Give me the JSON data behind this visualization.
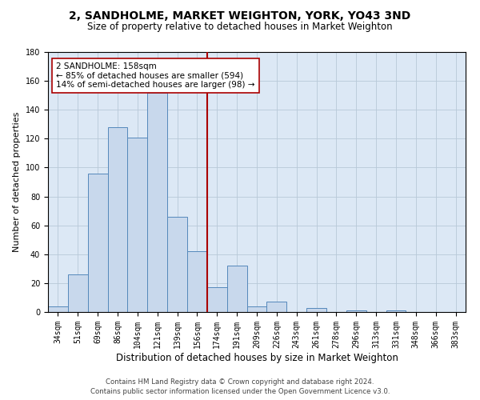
{
  "title": "2, SANDHOLME, MARKET WEIGHTON, YORK, YO43 3ND",
  "subtitle": "Size of property relative to detached houses in Market Weighton",
  "xlabel": "Distribution of detached houses by size in Market Weighton",
  "ylabel": "Number of detached properties",
  "bin_labels": [
    "34sqm",
    "51sqm",
    "69sqm",
    "86sqm",
    "104sqm",
    "121sqm",
    "139sqm",
    "156sqm",
    "174sqm",
    "191sqm",
    "209sqm",
    "226sqm",
    "243sqm",
    "261sqm",
    "278sqm",
    "296sqm",
    "313sqm",
    "331sqm",
    "348sqm",
    "366sqm",
    "383sqm"
  ],
  "bar_heights": [
    4,
    26,
    96,
    128,
    121,
    152,
    66,
    42,
    17,
    32,
    4,
    7,
    0,
    3,
    0,
    1,
    0,
    1,
    0,
    0,
    0
  ],
  "bar_color": "#c8d8ec",
  "bar_edge_color": "#5588bb",
  "bar_edge_width": 0.7,
  "grid_color": "#b8c8d8",
  "background_color": "#dce8f5",
  "fig_background": "#ffffff",
  "ylim": [
    0,
    180
  ],
  "yticks": [
    0,
    20,
    40,
    60,
    80,
    100,
    120,
    140,
    160,
    180
  ],
  "redline_x": 7.5,
  "redline_color": "#aa0000",
  "annotation_text": "2 SANDHOLME: 158sqm\n← 85% of detached houses are smaller (594)\n14% of semi-detached houses are larger (98) →",
  "annotation_box_color": "#ffffff",
  "annotation_box_edge": "#aa0000",
  "footer1": "Contains HM Land Registry data © Crown copyright and database right 2024.",
  "footer2": "Contains public sector information licensed under the Open Government Licence v3.0.",
  "title_fontsize": 10,
  "subtitle_fontsize": 8.5,
  "ylabel_fontsize": 8,
  "xlabel_fontsize": 8.5,
  "tick_fontsize": 7,
  "annot_fontsize": 7.5,
  "footer_fontsize": 6.2
}
